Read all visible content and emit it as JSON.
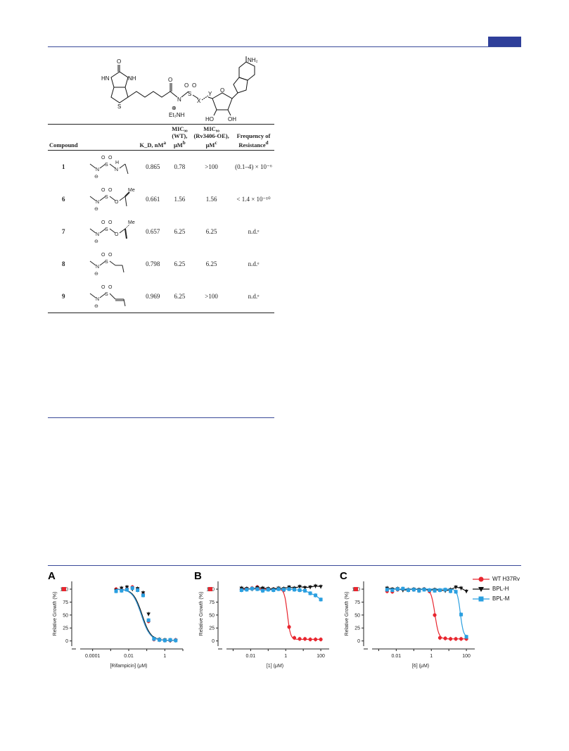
{
  "structure": {
    "labels": {
      "nh2": "NH₂",
      "o_top": "O",
      "nh_left": "HN",
      "nh_right": "NH",
      "s_ring": "S",
      "n_sulf": "N",
      "s_sulf": "S",
      "x": "X",
      "y": "Y",
      "et3nh": "Et₃NH",
      "plus": "⊕",
      "ho": "HO",
      "oh": "OH",
      "o_ring": "O"
    }
  },
  "table": {
    "headers": {
      "compound": "Compound",
      "kd": "K_D, nM",
      "kd_note": "a",
      "mic_wt_1": "MIC₉₀",
      "mic_wt_2": "(WT),",
      "mic_wt_3": "μM",
      "mic_wt_note": "b",
      "mic_oe_1": "MIC₉₀",
      "mic_oe_2": "(Rv3406-OE),",
      "mic_oe_3": "μM",
      "mic_oe_note": "c",
      "freq_1": "Frequency of",
      "freq_2": "Resistance",
      "freq_note": "d"
    },
    "rows": [
      {
        "id": "1",
        "kd": "0.865",
        "mic_wt": "0.78",
        "mic_oe": ">100",
        "freq": "(0.1–4) × 10⁻⁶"
      },
      {
        "id": "6",
        "kd": "0.661",
        "mic_wt": "1.56",
        "mic_oe": "1.56",
        "freq": "< 1.4 × 10⁻¹⁰"
      },
      {
        "id": "7",
        "kd": "0.657",
        "mic_wt": "6.25",
        "mic_oe": "6.25",
        "freq": "n.d.ᵉ"
      },
      {
        "id": "8",
        "kd": "0.798",
        "mic_wt": "6.25",
        "mic_oe": "6.25",
        "freq": "n.d.ᵉ"
      },
      {
        "id": "9",
        "kd": "0.969",
        "mic_wt": "6.25",
        "mic_oe": ">100",
        "freq": "n.d.ᵉ"
      }
    ],
    "substituent_labels": {
      "n": "N",
      "s": "S",
      "o": "O",
      "h": "H",
      "me": "Me",
      "minus": "⊖"
    }
  },
  "colors": {
    "rule": "#3a4a99",
    "wt": "#e8262f",
    "bplh": "#111111",
    "bplm": "#2a9fe0"
  },
  "figure": {
    "y_label_1": "Relative Growth",
    "y_label_2": "(%)",
    "y_ticks": [
      "0",
      "25",
      "50",
      "75",
      "100"
    ],
    "panels": [
      {
        "letter": "A",
        "x_label": "[Rifampicin] (μM)",
        "x_ticks": [
          "0.0001",
          "0.01",
          "1"
        ]
      },
      {
        "letter": "B",
        "x_label": "[1] (μM)",
        "x_ticks": [
          "0.01",
          "1",
          "100"
        ]
      },
      {
        "letter": "C",
        "x_label": "[6] (μM)",
        "x_ticks": [
          "0.01",
          "1",
          "100"
        ]
      }
    ],
    "legend": [
      {
        "label": "WT H37Rv",
        "marker": "circle-icon",
        "color": "#e8262f"
      },
      {
        "label": "BPL-H",
        "marker": "triangle-down-icon",
        "color": "#111111"
      },
      {
        "label": "BPL-M",
        "marker": "square-icon",
        "color": "#2a9fe0"
      }
    ]
  },
  "chart_data": [
    {
      "type": "scatter",
      "xlabel": "[Rifampicin] (μM)",
      "ylabel": "Relative Growth (%)",
      "xscale": "log",
      "xlim": [
        1e-05,
        10
      ],
      "ylim": [
        -10,
        115
      ],
      "series": [
        {
          "name": "WT H37Rv",
          "x": [
            0.002,
            0.004,
            0.008,
            0.016,
            0.031,
            0.063,
            0.125,
            0.25,
            0.5,
            1,
            2,
            4
          ],
          "y": [
            100,
            99,
            101,
            104,
            100,
            90,
            38,
            3,
            2,
            1,
            1,
            2
          ],
          "fit": [
            0.05,
            1.8
          ]
        },
        {
          "name": "BPL-H",
          "x": [
            0.002,
            0.004,
            0.008,
            0.016,
            0.031,
            0.063,
            0.125,
            0.25,
            0.5,
            1,
            2,
            4
          ],
          "y": [
            98,
            102,
            104,
            100,
            101,
            93,
            52,
            5,
            3,
            2,
            1,
            1
          ],
          "fit": [
            0.055,
            1.8
          ]
        },
        {
          "name": "BPL-M",
          "x": [
            0.002,
            0.004,
            0.008,
            0.016,
            0.031,
            0.063,
            0.125,
            0.25,
            0.5,
            1,
            2,
            4
          ],
          "y": [
            96,
            97,
            99,
            102,
            98,
            88,
            40,
            4,
            2,
            1,
            2,
            1
          ],
          "fit": [
            0.05,
            1.8
          ]
        }
      ],
      "untreated": [
        {
          "series": "WT H37Rv",
          "y": 100
        }
      ]
    },
    {
      "type": "scatter",
      "xlabel": "[1] (μM)",
      "ylabel": "Relative Growth (%)",
      "xscale": "log",
      "xlim": [
        0.0002,
        300
      ],
      "ylim": [
        -10,
        115
      ],
      "series": [
        {
          "name": "WT H37Rv",
          "x": [
            0.003,
            0.006,
            0.012,
            0.024,
            0.049,
            0.1,
            0.2,
            0.39,
            0.78,
            1.56,
            3.1,
            6.25,
            12.5,
            25,
            50,
            100
          ],
          "y": [
            100,
            101,
            102,
            104,
            101,
            100,
            100,
            101,
            98,
            27,
            6,
            4,
            4,
            3,
            3,
            3
          ],
          "fit": [
            1.25,
            5
          ]
        },
        {
          "name": "BPL-H",
          "x": [
            0.003,
            0.006,
            0.012,
            0.024,
            0.049,
            0.1,
            0.2,
            0.39,
            0.78,
            1.56,
            3.1,
            6.25,
            12.5,
            25,
            50,
            100
          ],
          "y": [
            102,
            101,
            100,
            103,
            102,
            101,
            100,
            102,
            101,
            104,
            102,
            105,
            103,
            104,
            106,
            105
          ]
        },
        {
          "name": "BPL-M",
          "x": [
            0.003,
            0.006,
            0.012,
            0.024,
            0.049,
            0.1,
            0.2,
            0.39,
            0.78,
            1.56,
            3.1,
            6.25,
            12.5,
            25,
            50,
            100
          ],
          "y": [
            98,
            99,
            101,
            100,
            97,
            99,
            98,
            100,
            99,
            100,
            99,
            98,
            97,
            92,
            88,
            80
          ]
        }
      ],
      "untreated": [
        {
          "series": "WT H37Rv",
          "y": 100
        }
      ]
    },
    {
      "type": "scatter",
      "xlabel": "[6] (μM)",
      "ylabel": "Relative Growth (%)",
      "xscale": "log",
      "xlim": [
        0.0002,
        300
      ],
      "ylim": [
        -10,
        115
      ],
      "series": [
        {
          "name": "WT H37Rv",
          "x": [
            0.003,
            0.006,
            0.012,
            0.024,
            0.049,
            0.1,
            0.2,
            0.39,
            0.78,
            1.56,
            3.1,
            6.25,
            12.5,
            25,
            50,
            100
          ],
          "y": [
            96,
            95,
            99,
            100,
            98,
            99,
            97,
            100,
            96,
            50,
            6,
            5,
            4,
            4,
            4,
            4
          ],
          "fit": [
            1.6,
            4
          ]
        },
        {
          "name": "BPL-H",
          "x": [
            0.003,
            0.006,
            0.012,
            0.024,
            0.049,
            0.1,
            0.2,
            0.39,
            0.78,
            1.56,
            3.1,
            6.25,
            12.5,
            25,
            50,
            100
          ],
          "y": [
            102,
            100,
            101,
            98,
            99,
            100,
            99,
            100,
            98,
            99,
            98,
            97,
            99,
            104,
            102,
            96
          ]
        },
        {
          "name": "BPL-M",
          "x": [
            0.003,
            0.006,
            0.012,
            0.024,
            0.049,
            0.1,
            0.2,
            0.39,
            0.78,
            1.56,
            3.1,
            6.25,
            12.5,
            25,
            50,
            100
          ],
          "y": [
            99,
            98,
            100,
            101,
            98,
            99,
            97,
            99,
            98,
            97,
            98,
            99,
            96,
            95,
            51,
            8
          ],
          "fit": [
            45,
            5
          ]
        }
      ],
      "untreated": [
        {
          "series": "WT H37Rv",
          "y": 100
        }
      ]
    }
  ]
}
